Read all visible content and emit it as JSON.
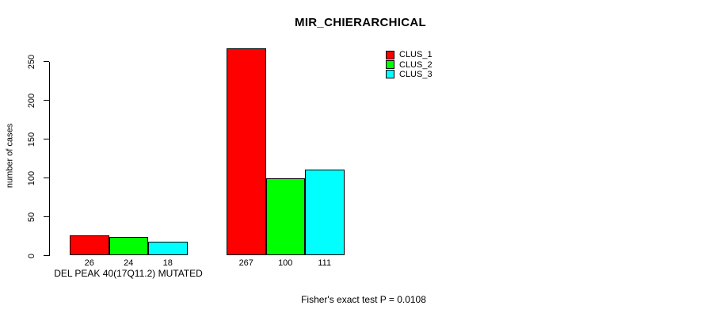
{
  "title": "MIR_CHIERARCHICAL",
  "chart_data": {
    "type": "bar",
    "title": "MIR_CHIERARCHICAL",
    "categories": [
      "DEL PEAK 40(17Q11.2) MUTATED",
      ""
    ],
    "series": [
      {
        "name": "CLUS_1",
        "color": "#FF0000",
        "values": [
          26,
          267
        ]
      },
      {
        "name": "CLUS_2",
        "color": "#00FF00",
        "values": [
          24,
          100
        ]
      },
      {
        "name": "CLUS_3",
        "color": "#00FFFF",
        "values": [
          18,
          111
        ]
      }
    ],
    "bar_value_labels": [
      [
        26,
        24,
        18
      ],
      [
        267,
        100,
        111
      ]
    ],
    "xlabel": "",
    "ylabel": "number of cases",
    "yticks": [
      0,
      50,
      100,
      150,
      200,
      250
    ],
    "ylim": [
      0,
      275
    ],
    "grid": false,
    "legend": {
      "position": "top-right",
      "entries": [
        "CLUS_1",
        "CLUS_2",
        "CLUS_3"
      ]
    }
  },
  "annotation": "Fisher's exact test P = 0.0108"
}
